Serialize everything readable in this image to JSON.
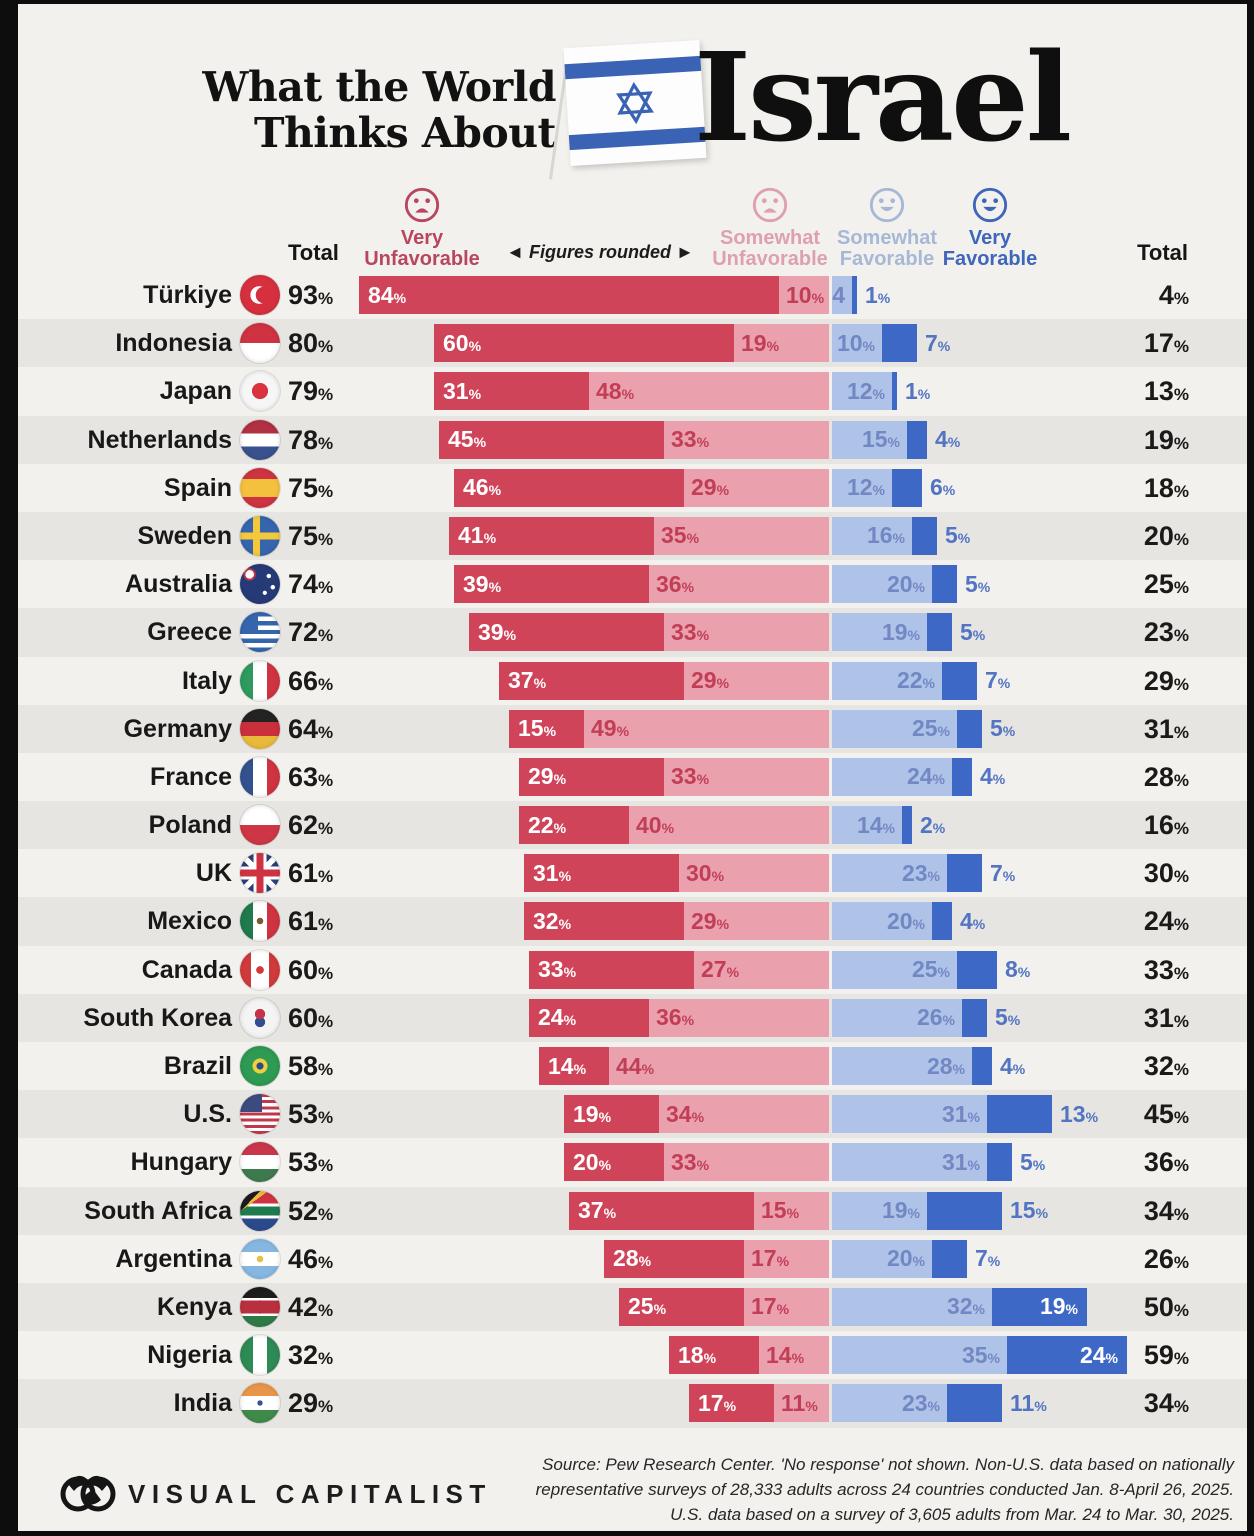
{
  "header": {
    "title_line1": "What the World",
    "title_line2": "Thinks About",
    "title_word": "Israel"
  },
  "legend": {
    "total_left": "Total",
    "total_right": "Total",
    "figures_note": "◄ Figures rounded ►",
    "items": [
      {
        "label_line1": "Very",
        "label_line2": "Unfavorable",
        "mood": "sad",
        "color": "#b9465f"
      },
      {
        "label_line1": "Somewhat",
        "label_line2": "Unfavorable",
        "mood": "sad",
        "color": "#dfa0ad"
      },
      {
        "label_line1": "Somewhat",
        "label_line2": "Favorable",
        "mood": "happy",
        "color": "#a7b8d6"
      },
      {
        "label_line1": "Very",
        "label_line2": "Favorable",
        "mood": "happy",
        "color": "#3f66bb"
      }
    ]
  },
  "colors": {
    "very_unfavorable": "#d04459",
    "somewhat_unfavorable": "#eaa0ad",
    "somewhat_favorable": "#afc2e7",
    "very_favorable": "#3d68c5",
    "paper": "#f2f1ed",
    "row_stripe": "#e7e5e1",
    "israel_flag_blue": "#3a63b5"
  },
  "chart_data": {
    "type": "bar",
    "variant": "diverging-stacked-horizontal",
    "unit": "%",
    "title": "What the World Thinks About Israel",
    "series_names": [
      "Very Unfavorable",
      "Somewhat Unfavorable",
      "Somewhat Favorable",
      "Very Favorable"
    ],
    "note": "Figures rounded",
    "rows": [
      {
        "country": "Türkiye",
        "flag": "turkiye",
        "total_unfav": 93,
        "vu": 84,
        "su": 10,
        "sf": 4,
        "vf": 1,
        "total_fav": 4,
        "sf_label": "4",
        "vf_inside": false
      },
      {
        "country": "Indonesia",
        "flag": "indonesia",
        "total_unfav": 80,
        "vu": 60,
        "su": 19,
        "sf": 10,
        "vf": 7,
        "total_fav": 17,
        "vf_inside": false
      },
      {
        "country": "Japan",
        "flag": "japan",
        "total_unfav": 79,
        "vu": 31,
        "su": 48,
        "sf": 12,
        "vf": 1,
        "total_fav": 13,
        "vf_inside": false
      },
      {
        "country": "Netherlands",
        "flag": "netherlands",
        "total_unfav": 78,
        "vu": 45,
        "su": 33,
        "sf": 15,
        "vf": 4,
        "total_fav": 19,
        "vf_inside": false
      },
      {
        "country": "Spain",
        "flag": "spain",
        "total_unfav": 75,
        "vu": 46,
        "su": 29,
        "sf": 12,
        "vf": 6,
        "total_fav": 18,
        "vf_inside": false
      },
      {
        "country": "Sweden",
        "flag": "sweden",
        "total_unfav": 75,
        "vu": 41,
        "su": 35,
        "sf": 16,
        "vf": 5,
        "total_fav": 20,
        "vf_inside": false
      },
      {
        "country": "Australia",
        "flag": "australia",
        "total_unfav": 74,
        "vu": 39,
        "su": 36,
        "sf": 20,
        "vf": 5,
        "total_fav": 25,
        "vf_inside": false
      },
      {
        "country": "Greece",
        "flag": "greece",
        "total_unfav": 72,
        "vu": 39,
        "su": 33,
        "sf": 19,
        "vf": 5,
        "total_fav": 23,
        "vf_inside": false
      },
      {
        "country": "Italy",
        "flag": "italy",
        "total_unfav": 66,
        "vu": 37,
        "su": 29,
        "sf": 22,
        "vf": 7,
        "total_fav": 29,
        "vf_inside": false
      },
      {
        "country": "Germany",
        "flag": "germany",
        "total_unfav": 64,
        "vu": 15,
        "su": 49,
        "sf": 25,
        "vf": 5,
        "total_fav": 31,
        "vf_inside": false
      },
      {
        "country": "France",
        "flag": "france",
        "total_unfav": 63,
        "vu": 29,
        "su": 33,
        "sf": 24,
        "vf": 4,
        "total_fav": 28,
        "vf_inside": false
      },
      {
        "country": "Poland",
        "flag": "poland",
        "total_unfav": 62,
        "vu": 22,
        "su": 40,
        "sf": 14,
        "vf": 2,
        "total_fav": 16,
        "vf_inside": false
      },
      {
        "country": "UK",
        "flag": "uk",
        "total_unfav": 61,
        "vu": 31,
        "su": 30,
        "sf": 23,
        "vf": 7,
        "total_fav": 30,
        "vf_inside": false
      },
      {
        "country": "Mexico",
        "flag": "mexico",
        "total_unfav": 61,
        "vu": 32,
        "su": 29,
        "sf": 20,
        "vf": 4,
        "total_fav": 24,
        "vf_inside": false
      },
      {
        "country": "Canada",
        "flag": "canada",
        "total_unfav": 60,
        "vu": 33,
        "su": 27,
        "sf": 25,
        "vf": 8,
        "total_fav": 33,
        "vf_inside": false
      },
      {
        "country": "South Korea",
        "flag": "south-korea",
        "total_unfav": 60,
        "vu": 24,
        "su": 36,
        "sf": 26,
        "vf": 5,
        "total_fav": 31,
        "vf_inside": false
      },
      {
        "country": "Brazil",
        "flag": "brazil",
        "total_unfav": 58,
        "vu": 14,
        "su": 44,
        "sf": 28,
        "vf": 4,
        "total_fav": 32,
        "vf_inside": false
      },
      {
        "country": "U.S.",
        "flag": "us",
        "total_unfav": 53,
        "vu": 19,
        "su": 34,
        "sf": 31,
        "vf": 13,
        "total_fav": 45,
        "vf_inside": false
      },
      {
        "country": "Hungary",
        "flag": "hungary",
        "total_unfav": 53,
        "vu": 20,
        "su": 33,
        "sf": 31,
        "vf": 5,
        "total_fav": 36,
        "vf_inside": false
      },
      {
        "country": "South Africa",
        "flag": "south-africa",
        "total_unfav": 52,
        "vu": 37,
        "su": 15,
        "sf": 19,
        "vf": 15,
        "total_fav": 34,
        "vf_inside": false
      },
      {
        "country": "Argentina",
        "flag": "argentina",
        "total_unfav": 46,
        "vu": 28,
        "su": 17,
        "sf": 20,
        "vf": 7,
        "total_fav": 26,
        "vf_inside": false
      },
      {
        "country": "Kenya",
        "flag": "kenya",
        "total_unfav": 42,
        "vu": 25,
        "su": 17,
        "sf": 32,
        "vf": 19,
        "total_fav": 50,
        "vf_inside": true
      },
      {
        "country": "Nigeria",
        "flag": "nigeria",
        "total_unfav": 32,
        "vu": 18,
        "su": 14,
        "sf": 35,
        "vf": 24,
        "total_fav": 59,
        "vf_inside": true
      },
      {
        "country": "India",
        "flag": "india",
        "total_unfav": 29,
        "vu": 17,
        "su": 11,
        "sf": 23,
        "vf": 11,
        "total_fav": 34,
        "vf_inside": false
      }
    ]
  },
  "footer": {
    "brand": "VISUAL CAPITALIST",
    "source_lines": [
      "Source: Pew Research Center. 'No response' not shown. Non-U.S. data based on nationally",
      "representative surveys of 28,333 adults across 24 countries conducted Jan. 8-April 26, 2025.",
      "U.S. data based on a survey of 3,605 adults from Mar. 24 to Mar. 30, 2025."
    ]
  }
}
